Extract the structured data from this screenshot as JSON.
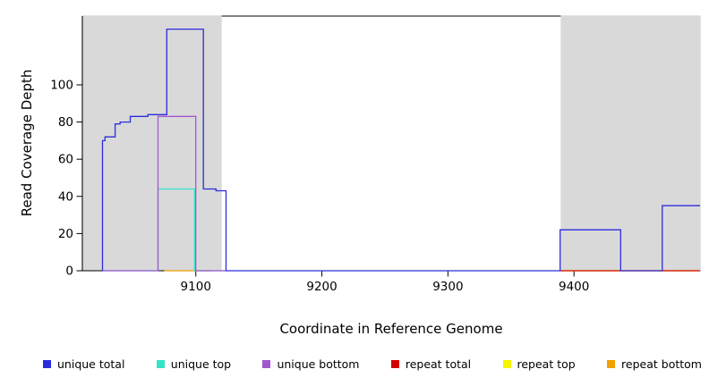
{
  "chart_data": {
    "type": "line",
    "title": "",
    "xlabel": "Coordinate in Reference Genome",
    "ylabel": "Read Coverage Depth",
    "xlim": [
      9010,
      9500
    ],
    "ylim": [
      0,
      137
    ],
    "x_ticks": [
      9100,
      9200,
      9300,
      9400
    ],
    "y_ticks": [
      0,
      20,
      40,
      60,
      80,
      100
    ],
    "grid": false,
    "legend_position": "bottom",
    "shaded_regions": [
      {
        "name": "repeat-region-left",
        "x0": 9010,
        "x1": 9120,
        "color": "#d9d9d9"
      },
      {
        "name": "repeat-region-right",
        "x0": 9390,
        "x1": 9500,
        "color": "#d9d9d9"
      }
    ],
    "series": [
      {
        "name": "repeat top",
        "color": "#f5f500",
        "points": [
          [
            9389,
            0
          ],
          [
            9500,
            0
          ]
        ]
      },
      {
        "name": "repeat bottom",
        "color": "#f0a000",
        "points": [
          [
            9075,
            0
          ],
          [
            9113,
            0
          ]
        ]
      },
      {
        "name": "repeat total",
        "color": "#d40000",
        "points": [
          [
            9389,
            0
          ],
          [
            9500,
            0
          ]
        ]
      },
      {
        "name": "unique top",
        "color": "#36e2c8",
        "points": [
          [
            9026,
            0
          ],
          [
            9070,
            0
          ],
          [
            9070,
            44
          ],
          [
            9099,
            44
          ],
          [
            9099,
            0
          ],
          [
            9124,
            0
          ]
        ]
      },
      {
        "name": "unique bottom",
        "color": "#a257cf",
        "points": [
          [
            9026,
            0
          ],
          [
            9070,
            0
          ],
          [
            9070,
            83
          ],
          [
            9100,
            83
          ],
          [
            9100,
            0
          ],
          [
            9124,
            0
          ]
        ]
      },
      {
        "name": "unique total",
        "color": "#2c2cdd",
        "points": [
          [
            9026,
            0
          ],
          [
            9026,
            70
          ],
          [
            9028,
            70
          ],
          [
            9028,
            72
          ],
          [
            9036,
            72
          ],
          [
            9036,
            79
          ],
          [
            9040,
            79
          ],
          [
            9040,
            80
          ],
          [
            9048,
            80
          ],
          [
            9048,
            83
          ],
          [
            9062,
            83
          ],
          [
            9062,
            84
          ],
          [
            9077,
            84
          ],
          [
            9077,
            130
          ],
          [
            9106,
            130
          ],
          [
            9106,
            44
          ],
          [
            9116,
            44
          ],
          [
            9116,
            43
          ],
          [
            9124,
            43
          ],
          [
            9124,
            0
          ],
          [
            9389,
            0
          ],
          [
            9389,
            22
          ],
          [
            9437,
            22
          ],
          [
            9437,
            0
          ],
          [
            9470,
            0
          ],
          [
            9470,
            35
          ],
          [
            9500,
            35
          ]
        ]
      }
    ],
    "legend": [
      {
        "label": "unique total",
        "color": "#2c2cdd"
      },
      {
        "label": "unique top",
        "color": "#36e2c8"
      },
      {
        "label": "unique bottom",
        "color": "#a257cf"
      },
      {
        "label": "repeat total",
        "color": "#d40000"
      },
      {
        "label": "repeat top",
        "color": "#f5f500"
      },
      {
        "label": "repeat bottom",
        "color": "#f0a000"
      }
    ]
  }
}
